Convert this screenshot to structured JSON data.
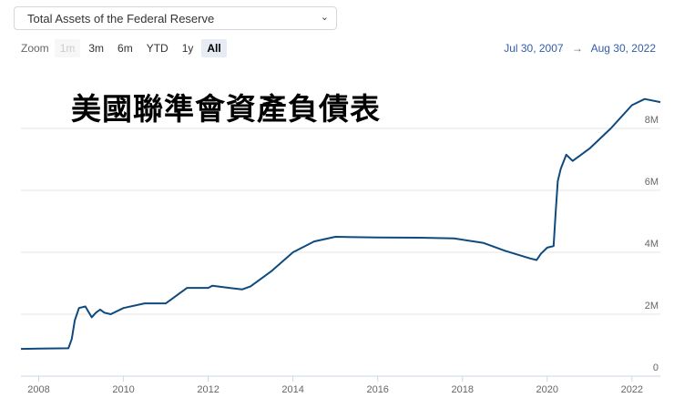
{
  "selector": {
    "value": "Total Assets of the Federal Reserve",
    "icon": "chevron-down-icon"
  },
  "zoom": {
    "label": "Zoom",
    "buttons": [
      {
        "label": "1m",
        "state": "disabled"
      },
      {
        "label": "3m",
        "state": "normal"
      },
      {
        "label": "6m",
        "state": "normal"
      },
      {
        "label": "YTD",
        "state": "normal"
      },
      {
        "label": "1y",
        "state": "normal"
      },
      {
        "label": "All",
        "state": "active"
      }
    ]
  },
  "range": {
    "from": "Jul 30, 2007",
    "arrow": "→",
    "to": "Aug 30, 2022"
  },
  "chart_data": {
    "type": "line",
    "title": "美國聯準會資產負債表",
    "line_color": "#0e4a80",
    "grid": true,
    "xlim": [
      2007.58,
      2022.67
    ],
    "ylim": [
      0,
      9.5
    ],
    "x_ticks": [
      "2008",
      "2010",
      "2012",
      "2014",
      "2016",
      "2018",
      "2020",
      "2022"
    ],
    "y_ticks": [
      "0",
      "2M",
      "4M",
      "6M",
      "8M"
    ],
    "series": [
      {
        "x": [
          2007.58,
          2008.0,
          2008.7,
          2008.78,
          2008.85,
          2008.95,
          2009.1,
          2009.25,
          2009.35,
          2009.45,
          2009.55,
          2009.7,
          2010.0,
          2010.5,
          2011.0,
          2011.5,
          2012.0,
          2012.1,
          2012.5,
          2012.8,
          2013.0,
          2013.5,
          2014.0,
          2014.5,
          2015.0,
          2016.0,
          2017.0,
          2017.8,
          2018.5,
          2019.0,
          2019.6,
          2019.75,
          2019.85,
          2020.0,
          2020.15,
          2020.2,
          2020.25,
          2020.32,
          2020.45,
          2020.6,
          2021.0,
          2021.5,
          2022.0,
          2022.3,
          2022.67
        ],
        "y": [
          0.88,
          0.89,
          0.9,
          1.2,
          1.8,
          2.2,
          2.25,
          1.9,
          2.05,
          2.15,
          2.05,
          2.0,
          2.2,
          2.35,
          2.35,
          2.85,
          2.85,
          2.92,
          2.85,
          2.8,
          2.9,
          3.4,
          4.0,
          4.35,
          4.5,
          4.48,
          4.47,
          4.45,
          4.3,
          4.05,
          3.8,
          3.75,
          3.95,
          4.15,
          4.2,
          5.3,
          6.3,
          6.7,
          7.15,
          6.95,
          7.35,
          8.0,
          8.75,
          8.95,
          8.85
        ]
      }
    ]
  }
}
